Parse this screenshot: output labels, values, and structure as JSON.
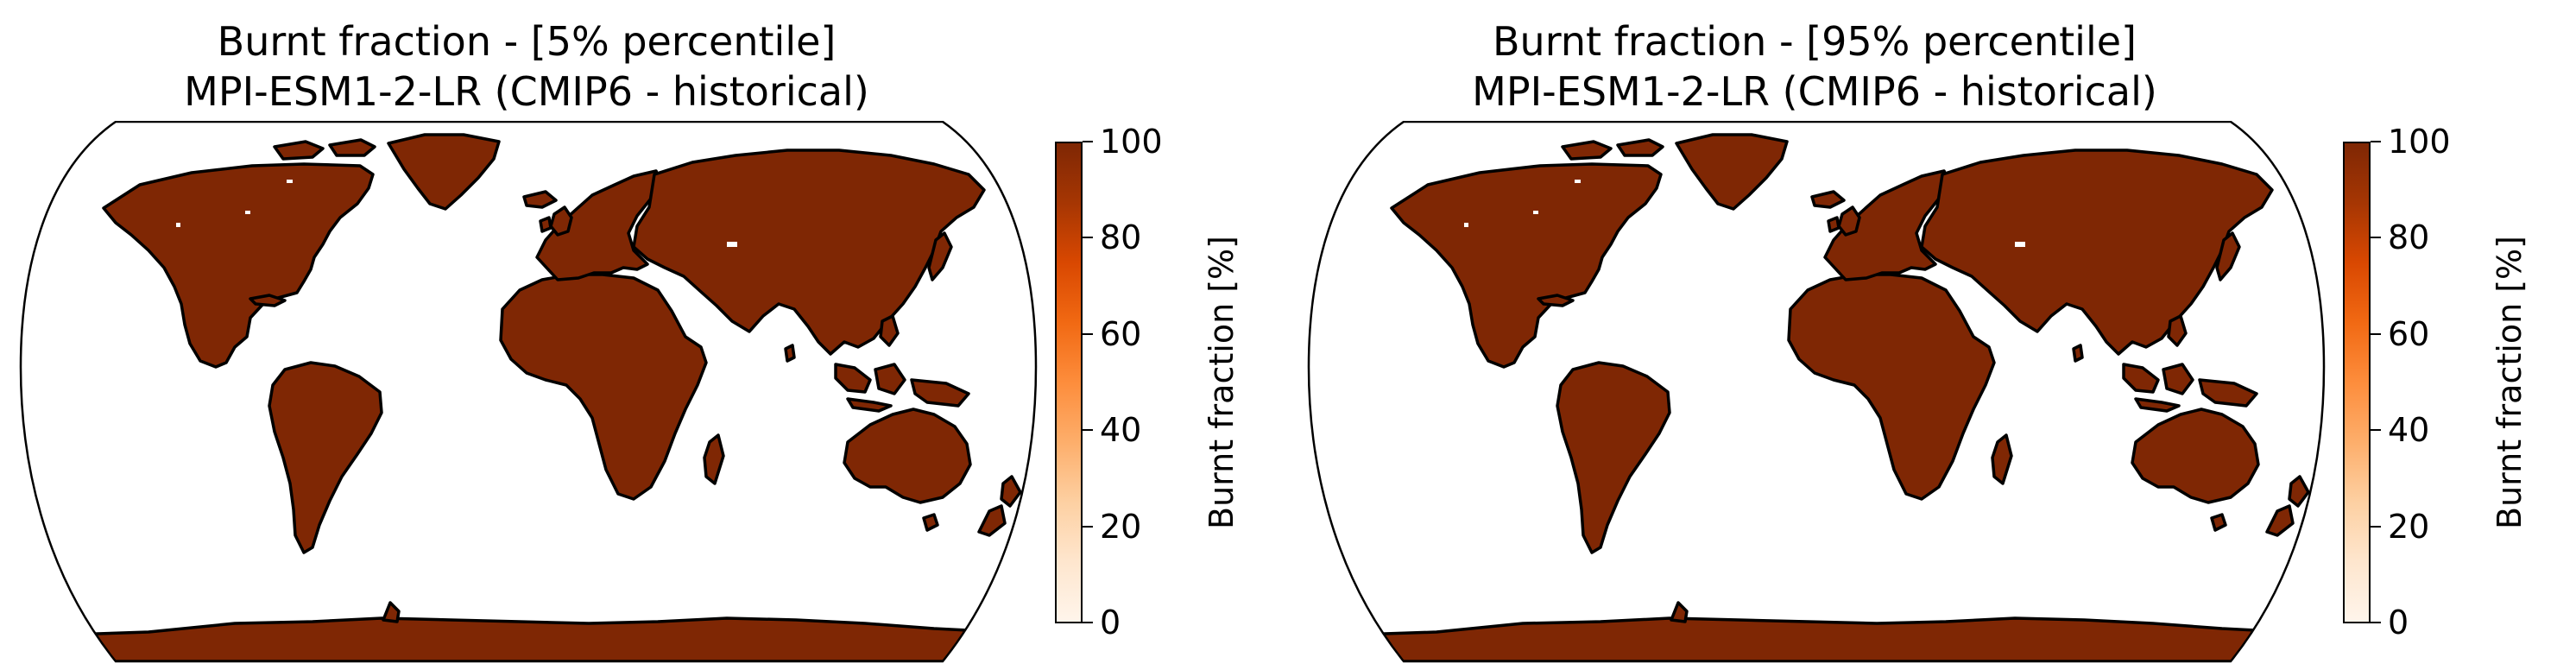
{
  "colors": {
    "land": "#7f2704",
    "coast": "#000000",
    "ocean": "#ffffff",
    "colormap": [
      "#fff5eb",
      "#fee6ce",
      "#fdd0a2",
      "#fdae6b",
      "#fd8d3c",
      "#f16913",
      "#d94801",
      "#a63603",
      "#7f2704"
    ]
  },
  "projection": "robinson",
  "panels": [
    {
      "title_line1": "Burnt fraction - [5% percentile]",
      "title_line2": "MPI-ESM1-2-LR (CMIP6 - historical)",
      "colorbar": {
        "label": "Burnt fraction [%]",
        "ticks": [
          "0",
          "20",
          "40",
          "60",
          "80",
          "100"
        ],
        "range": [
          0,
          100
        ],
        "cmap": "Oranges"
      }
    },
    {
      "title_line1": "Burnt fraction - [95% percentile]",
      "title_line2": "MPI-ESM1-2-LR (CMIP6 - historical)",
      "colorbar": {
        "label": "Burnt fraction [%]",
        "ticks": [
          "0",
          "20",
          "40",
          "60",
          "80",
          "100"
        ],
        "range": [
          0,
          100
        ],
        "cmap": "Oranges"
      }
    }
  ]
}
